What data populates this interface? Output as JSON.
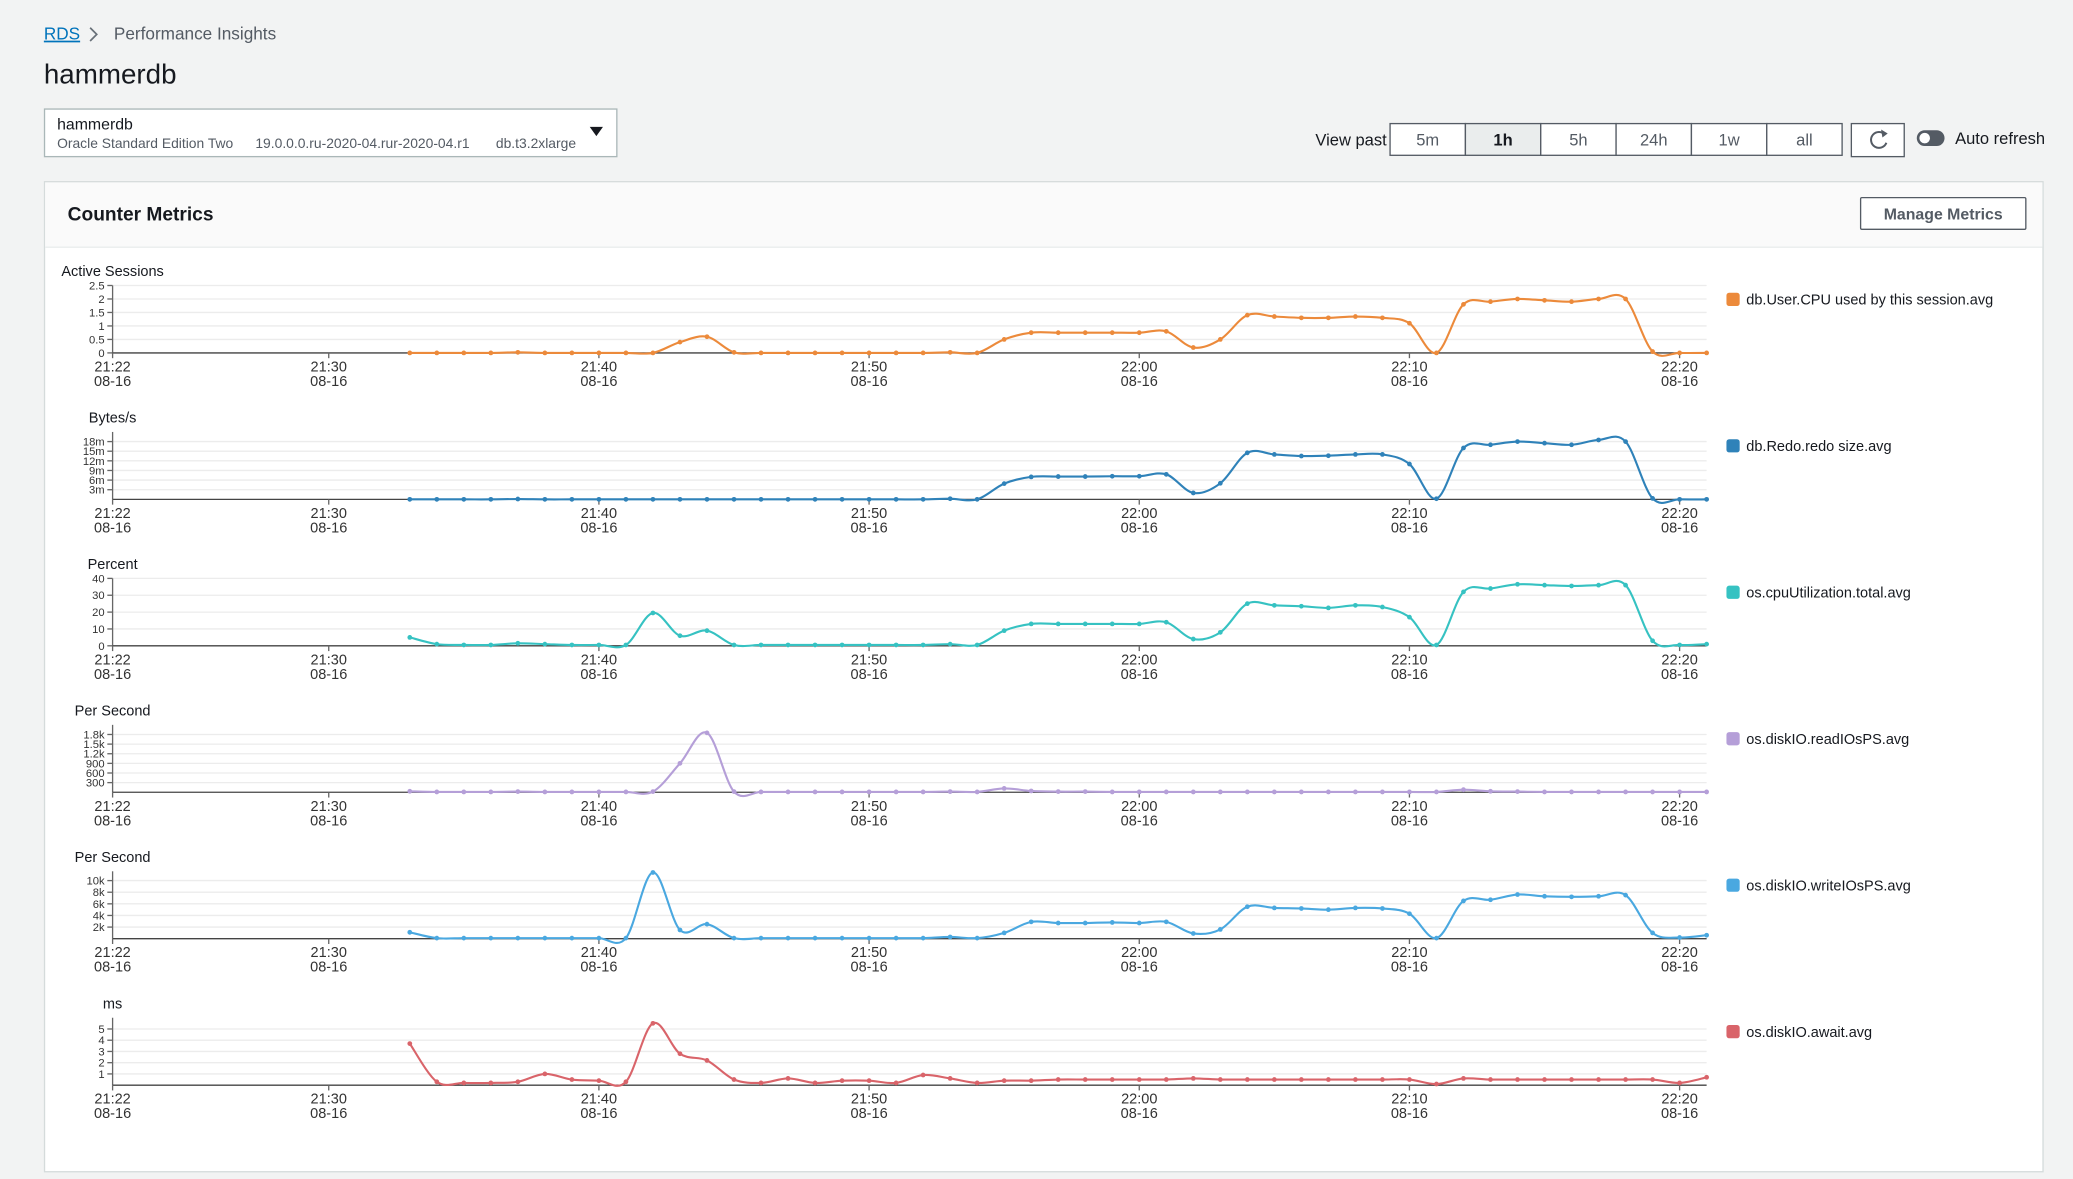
{
  "breadcrumb": {
    "link": "RDS",
    "current": "Performance Insights"
  },
  "title": "hammerdb",
  "instance_selector": {
    "name": "hammerdb",
    "engine": "Oracle Standard Edition Two",
    "version": "19.0.0.0.ru-2020-04.rur-2020-04.r1",
    "instance_class": "db.t3.2xlarge"
  },
  "time_range": {
    "label": "View past",
    "options": [
      "5m",
      "1h",
      "5h",
      "24h",
      "1w",
      "all"
    ],
    "selected": "1h"
  },
  "auto_refresh": {
    "label": "Auto refresh",
    "enabled": false
  },
  "panel": {
    "title": "Counter Metrics",
    "button": "Manage Metrics"
  },
  "chart_data": [
    {
      "type": "line",
      "y_label": "Active Sessions",
      "x": [
        "21:33",
        "21:34",
        "21:35",
        "21:36",
        "21:37",
        "21:38",
        "21:39",
        "21:40",
        "21:41",
        "21:42",
        "21:43",
        "21:44",
        "21:45",
        "21:46",
        "21:47",
        "21:48",
        "21:49",
        "21:50",
        "21:51",
        "21:52",
        "21:53",
        "21:54",
        "21:55",
        "21:56",
        "21:57",
        "21:58",
        "21:59",
        "22:00",
        "22:01",
        "22:02",
        "22:03",
        "22:04",
        "22:05",
        "22:06",
        "22:07",
        "22:08",
        "22:09",
        "22:10",
        "22:11",
        "22:12",
        "22:13",
        "22:14",
        "22:15",
        "22:16",
        "22:17",
        "22:18",
        "22:19",
        "22:20",
        "22:21"
      ],
      "xlim": [
        "21:22",
        "22:21"
      ],
      "xticks": [
        {
          "value": "21:22",
          "label": [
            "21:22",
            "08-16"
          ]
        },
        {
          "value": "21:30",
          "label": [
            "21:30",
            "08-16"
          ]
        },
        {
          "value": "21:40",
          "label": [
            "21:40",
            "08-16"
          ]
        },
        {
          "value": "21:50",
          "label": [
            "21:50",
            "08-16"
          ]
        },
        {
          "value": "22:00",
          "label": [
            "22:00",
            "08-16"
          ]
        },
        {
          "value": "22:10",
          "label": [
            "22:10",
            "08-16"
          ]
        },
        {
          "value": "22:20",
          "label": [
            "22:20",
            "08-16"
          ]
        }
      ],
      "ylim": [
        0,
        2.5
      ],
      "yticks": [
        0,
        0.5,
        1,
        1.5,
        2,
        2.5
      ],
      "grid": true,
      "legend": "right",
      "series": [
        {
          "name": "db.User.CPU used by this session.avg",
          "color": "#ec8a3b",
          "values": [
            0,
            0,
            0,
            0,
            0.02,
            0,
            0,
            0,
            0,
            0,
            0.4,
            0.6,
            0.02,
            0,
            0,
            0,
            0,
            0,
            0,
            0,
            0.02,
            0,
            0.5,
            0.75,
            0.75,
            0.75,
            0.75,
            0.75,
            0.8,
            0.2,
            0.5,
            1.4,
            1.35,
            1.3,
            1.3,
            1.35,
            1.3,
            1.1,
            0,
            1.8,
            1.9,
            2,
            1.95,
            1.9,
            2,
            2,
            0.05,
            0,
            0
          ]
        }
      ]
    },
    {
      "type": "line",
      "y_label": "Bytes/s",
      "x": [
        "21:33",
        "21:34",
        "21:35",
        "21:36",
        "21:37",
        "21:38",
        "21:39",
        "21:40",
        "21:41",
        "21:42",
        "21:43",
        "21:44",
        "21:45",
        "21:46",
        "21:47",
        "21:48",
        "21:49",
        "21:50",
        "21:51",
        "21:52",
        "21:53",
        "21:54",
        "21:55",
        "21:56",
        "21:57",
        "21:58",
        "21:59",
        "22:00",
        "22:01",
        "22:02",
        "22:03",
        "22:04",
        "22:05",
        "22:06",
        "22:07",
        "22:08",
        "22:09",
        "22:10",
        "22:11",
        "22:12",
        "22:13",
        "22:14",
        "22:15",
        "22:16",
        "22:17",
        "22:18",
        "22:19",
        "22:20",
        "22:21"
      ],
      "xlim": [
        "21:22",
        "22:21"
      ],
      "xticks": [
        {
          "value": "21:22",
          "label": [
            "21:22",
            "08-16"
          ]
        },
        {
          "value": "21:30",
          "label": [
            "21:30",
            "08-16"
          ]
        },
        {
          "value": "21:40",
          "label": [
            "21:40",
            "08-16"
          ]
        },
        {
          "value": "21:50",
          "label": [
            "21:50",
            "08-16"
          ]
        },
        {
          "value": "22:00",
          "label": [
            "22:00",
            "08-16"
          ]
        },
        {
          "value": "22:10",
          "label": [
            "22:10",
            "08-16"
          ]
        },
        {
          "value": "22:20",
          "label": [
            "22:20",
            "08-16"
          ]
        }
      ],
      "ylim": [
        0,
        21000000
      ],
      "yticks": [
        {
          "value": 3000000,
          "label": "3m"
        },
        {
          "value": 6000000,
          "label": "6m"
        },
        {
          "value": 9000000,
          "label": "9m"
        },
        {
          "value": 12000000,
          "label": "12m"
        },
        {
          "value": 15000000,
          "label": "15m"
        },
        {
          "value": 18000000,
          "label": "18m"
        }
      ],
      "grid": true,
      "legend": "right",
      "series": [
        {
          "name": "db.Redo.redo size.avg",
          "color": "#2f82b9",
          "values": [
            0,
            0,
            0,
            0,
            100000,
            0,
            0,
            0,
            0,
            0,
            0,
            0,
            0,
            0,
            0,
            0,
            0,
            0,
            0,
            0,
            200000,
            0,
            4900000,
            7000000,
            7100000,
            7100000,
            7200000,
            7200000,
            7800000,
            2000000,
            5000000,
            14500000,
            14000000,
            13500000,
            13600000,
            14000000,
            14000000,
            11000000,
            200000,
            16000000,
            17000000,
            18000000,
            17500000,
            17000000,
            18500000,
            18000000,
            300000,
            0,
            0
          ]
        }
      ]
    },
    {
      "type": "line",
      "y_label": "Percent",
      "x": [
        "21:33",
        "21:34",
        "21:35",
        "21:36",
        "21:37",
        "21:38",
        "21:39",
        "21:40",
        "21:41",
        "21:42",
        "21:43",
        "21:44",
        "21:45",
        "21:46",
        "21:47",
        "21:48",
        "21:49",
        "21:50",
        "21:51",
        "21:52",
        "21:53",
        "21:54",
        "21:55",
        "21:56",
        "21:57",
        "21:58",
        "21:59",
        "22:00",
        "22:01",
        "22:02",
        "22:03",
        "22:04",
        "22:05",
        "22:06",
        "22:07",
        "22:08",
        "22:09",
        "22:10",
        "22:11",
        "22:12",
        "22:13",
        "22:14",
        "22:15",
        "22:16",
        "22:17",
        "22:18",
        "22:19",
        "22:20",
        "22:21"
      ],
      "xlim": [
        "21:22",
        "22:21"
      ],
      "xticks": [
        {
          "value": "21:22",
          "label": [
            "21:22",
            "08-16"
          ]
        },
        {
          "value": "21:30",
          "label": [
            "21:30",
            "08-16"
          ]
        },
        {
          "value": "21:40",
          "label": [
            "21:40",
            "08-16"
          ]
        },
        {
          "value": "21:50",
          "label": [
            "21:50",
            "08-16"
          ]
        },
        {
          "value": "22:00",
          "label": [
            "22:00",
            "08-16"
          ]
        },
        {
          "value": "22:10",
          "label": [
            "22:10",
            "08-16"
          ]
        },
        {
          "value": "22:20",
          "label": [
            "22:20",
            "08-16"
          ]
        }
      ],
      "ylim": [
        0,
        40
      ],
      "yticks": [
        0,
        10,
        20,
        30,
        40
      ],
      "grid": true,
      "legend": "right",
      "series": [
        {
          "name": "os.cpuUtilization.total.avg",
          "color": "#36c2c2",
          "values": [
            5,
            1,
            0.5,
            0.5,
            1.5,
            1,
            0.5,
            0.5,
            0.5,
            19.5,
            6,
            9,
            0.5,
            0.5,
            0.5,
            0.5,
            0.5,
            0.5,
            0.5,
            0.5,
            1,
            0.5,
            9,
            13,
            13,
            13,
            13,
            13,
            14,
            4,
            8,
            25,
            24,
            23.5,
            22.5,
            24,
            23,
            17,
            0.5,
            32,
            34,
            36.5,
            36,
            35.5,
            36,
            36,
            3,
            0.5,
            1
          ]
        }
      ]
    },
    {
      "type": "line",
      "y_label": "Per Second",
      "x": [
        "21:33",
        "21:34",
        "21:35",
        "21:36",
        "21:37",
        "21:38",
        "21:39",
        "21:40",
        "21:41",
        "21:42",
        "21:43",
        "21:44",
        "21:45",
        "21:46",
        "21:47",
        "21:48",
        "21:49",
        "21:50",
        "21:51",
        "21:52",
        "21:53",
        "21:54",
        "21:55",
        "21:56",
        "21:57",
        "21:58",
        "21:59",
        "22:00",
        "22:01",
        "22:02",
        "22:03",
        "22:04",
        "22:05",
        "22:06",
        "22:07",
        "22:08",
        "22:09",
        "22:10",
        "22:11",
        "22:12",
        "22:13",
        "22:14",
        "22:15",
        "22:16",
        "22:17",
        "22:18",
        "22:19",
        "22:20",
        "22:21"
      ],
      "xlim": [
        "21:22",
        "22:21"
      ],
      "xticks": [
        {
          "value": "21:22",
          "label": [
            "21:22",
            "08-16"
          ]
        },
        {
          "value": "21:30",
          "label": [
            "21:30",
            "08-16"
          ]
        },
        {
          "value": "21:40",
          "label": [
            "21:40",
            "08-16"
          ]
        },
        {
          "value": "21:50",
          "label": [
            "21:50",
            "08-16"
          ]
        },
        {
          "value": "22:00",
          "label": [
            "22:00",
            "08-16"
          ]
        },
        {
          "value": "22:10",
          "label": [
            "22:10",
            "08-16"
          ]
        },
        {
          "value": "22:20",
          "label": [
            "22:20",
            "08-16"
          ]
        }
      ],
      "ylim": [
        0,
        2100
      ],
      "yticks": [
        300,
        600,
        900,
        {
          "value": 1200,
          "label": "1.2k"
        },
        {
          "value": 1500,
          "label": "1.5k"
        },
        {
          "value": 1800,
          "label": "1.8k"
        }
      ],
      "grid": true,
      "legend": "right",
      "series": [
        {
          "name": "os.diskIO.readIOsPS.avg",
          "color": "#b59fd8",
          "values": [
            30,
            10,
            10,
            10,
            20,
            10,
            10,
            10,
            10,
            20,
            900,
            1850,
            20,
            10,
            10,
            10,
            10,
            10,
            10,
            10,
            20,
            10,
            120,
            40,
            20,
            20,
            10,
            10,
            10,
            10,
            10,
            10,
            10,
            10,
            10,
            10,
            10,
            10,
            10,
            80,
            30,
            20,
            10,
            10,
            10,
            10,
            10,
            10,
            10
          ]
        }
      ]
    },
    {
      "type": "line",
      "y_label": "Per Second",
      "x": [
        "21:33",
        "21:34",
        "21:35",
        "21:36",
        "21:37",
        "21:38",
        "21:39",
        "21:40",
        "21:41",
        "21:42",
        "21:43",
        "21:44",
        "21:45",
        "21:46",
        "21:47",
        "21:48",
        "21:49",
        "21:50",
        "21:51",
        "21:52",
        "21:53",
        "21:54",
        "21:55",
        "21:56",
        "21:57",
        "21:58",
        "21:59",
        "22:00",
        "22:01",
        "22:02",
        "22:03",
        "22:04",
        "22:05",
        "22:06",
        "22:07",
        "22:08",
        "22:09",
        "22:10",
        "22:11",
        "22:12",
        "22:13",
        "22:14",
        "22:15",
        "22:16",
        "22:17",
        "22:18",
        "22:19",
        "22:20",
        "22:21"
      ],
      "xlim": [
        "21:22",
        "22:21"
      ],
      "xticks": [
        {
          "value": "21:22",
          "label": [
            "21:22",
            "08-16"
          ]
        },
        {
          "value": "21:30",
          "label": [
            "21:30",
            "08-16"
          ]
        },
        {
          "value": "21:40",
          "label": [
            "21:40",
            "08-16"
          ]
        },
        {
          "value": "21:50",
          "label": [
            "21:50",
            "08-16"
          ]
        },
        {
          "value": "22:00",
          "label": [
            "22:00",
            "08-16"
          ]
        },
        {
          "value": "22:10",
          "label": [
            "22:10",
            "08-16"
          ]
        },
        {
          "value": "22:20",
          "label": [
            "22:20",
            "08-16"
          ]
        }
      ],
      "ylim": [
        0,
        11600
      ],
      "yticks": [
        {
          "value": 2000,
          "label": "2k"
        },
        {
          "value": 4000,
          "label": "4k"
        },
        {
          "value": 6000,
          "label": "6k"
        },
        {
          "value": 8000,
          "label": "8k"
        },
        {
          "value": 10000,
          "label": "10k"
        }
      ],
      "grid": true,
      "legend": "right",
      "series": [
        {
          "name": "os.diskIO.writeIOsPS.avg",
          "color": "#4aa8e0",
          "values": [
            1100,
            100,
            100,
            100,
            100,
            100,
            100,
            100,
            100,
            11400,
            1500,
            2500,
            100,
            100,
            100,
            100,
            100,
            100,
            100,
            100,
            300,
            100,
            1000,
            2900,
            2700,
            2700,
            2800,
            2700,
            2900,
            900,
            1600,
            5500,
            5300,
            5200,
            5000,
            5300,
            5200,
            4300,
            100,
            6500,
            6700,
            7600,
            7300,
            7200,
            7300,
            7500,
            1000,
            200,
            600
          ]
        }
      ]
    },
    {
      "type": "line",
      "y_label": "ms",
      "x": [
        "21:33",
        "21:34",
        "21:35",
        "21:36",
        "21:37",
        "21:38",
        "21:39",
        "21:40",
        "21:41",
        "21:42",
        "21:43",
        "21:44",
        "21:45",
        "21:46",
        "21:47",
        "21:48",
        "21:49",
        "21:50",
        "21:51",
        "21:52",
        "21:53",
        "21:54",
        "21:55",
        "21:56",
        "21:57",
        "21:58",
        "21:59",
        "22:00",
        "22:01",
        "22:02",
        "22:03",
        "22:04",
        "22:05",
        "22:06",
        "22:07",
        "22:08",
        "22:09",
        "22:10",
        "22:11",
        "22:12",
        "22:13",
        "22:14",
        "22:15",
        "22:16",
        "22:17",
        "22:18",
        "22:19",
        "22:20",
        "22:21"
      ],
      "xlim": [
        "21:22",
        "22:21"
      ],
      "xticks": [
        {
          "value": "21:22",
          "label": [
            "21:22",
            "08-16"
          ]
        },
        {
          "value": "21:30",
          "label": [
            "21:30",
            "08-16"
          ]
        },
        {
          "value": "21:40",
          "label": [
            "21:40",
            "08-16"
          ]
        },
        {
          "value": "21:50",
          "label": [
            "21:50",
            "08-16"
          ]
        },
        {
          "value": "22:00",
          "label": [
            "22:00",
            "08-16"
          ]
        },
        {
          "value": "22:10",
          "label": [
            "22:10",
            "08-16"
          ]
        },
        {
          "value": "22:20",
          "label": [
            "22:20",
            "08-16"
          ]
        }
      ],
      "ylim": [
        0,
        6
      ],
      "yticks": [
        1,
        2,
        3,
        4,
        5
      ],
      "grid": true,
      "legend": "right",
      "series": [
        {
          "name": "os.diskIO.await.avg",
          "color": "#d9646a",
          "values": [
            3.7,
            0.3,
            0.2,
            0.2,
            0.3,
            1,
            0.5,
            0.4,
            0.3,
            5.5,
            2.8,
            2.2,
            0.5,
            0.2,
            0.6,
            0.2,
            0.4,
            0.4,
            0.2,
            0.9,
            0.6,
            0.2,
            0.4,
            0.4,
            0.5,
            0.5,
            0.5,
            0.5,
            0.5,
            0.6,
            0.5,
            0.5,
            0.5,
            0.5,
            0.5,
            0.5,
            0.5,
            0.5,
            0.1,
            0.6,
            0.5,
            0.5,
            0.5,
            0.5,
            0.5,
            0.5,
            0.5,
            0.2,
            0.7
          ]
        }
      ]
    }
  ]
}
